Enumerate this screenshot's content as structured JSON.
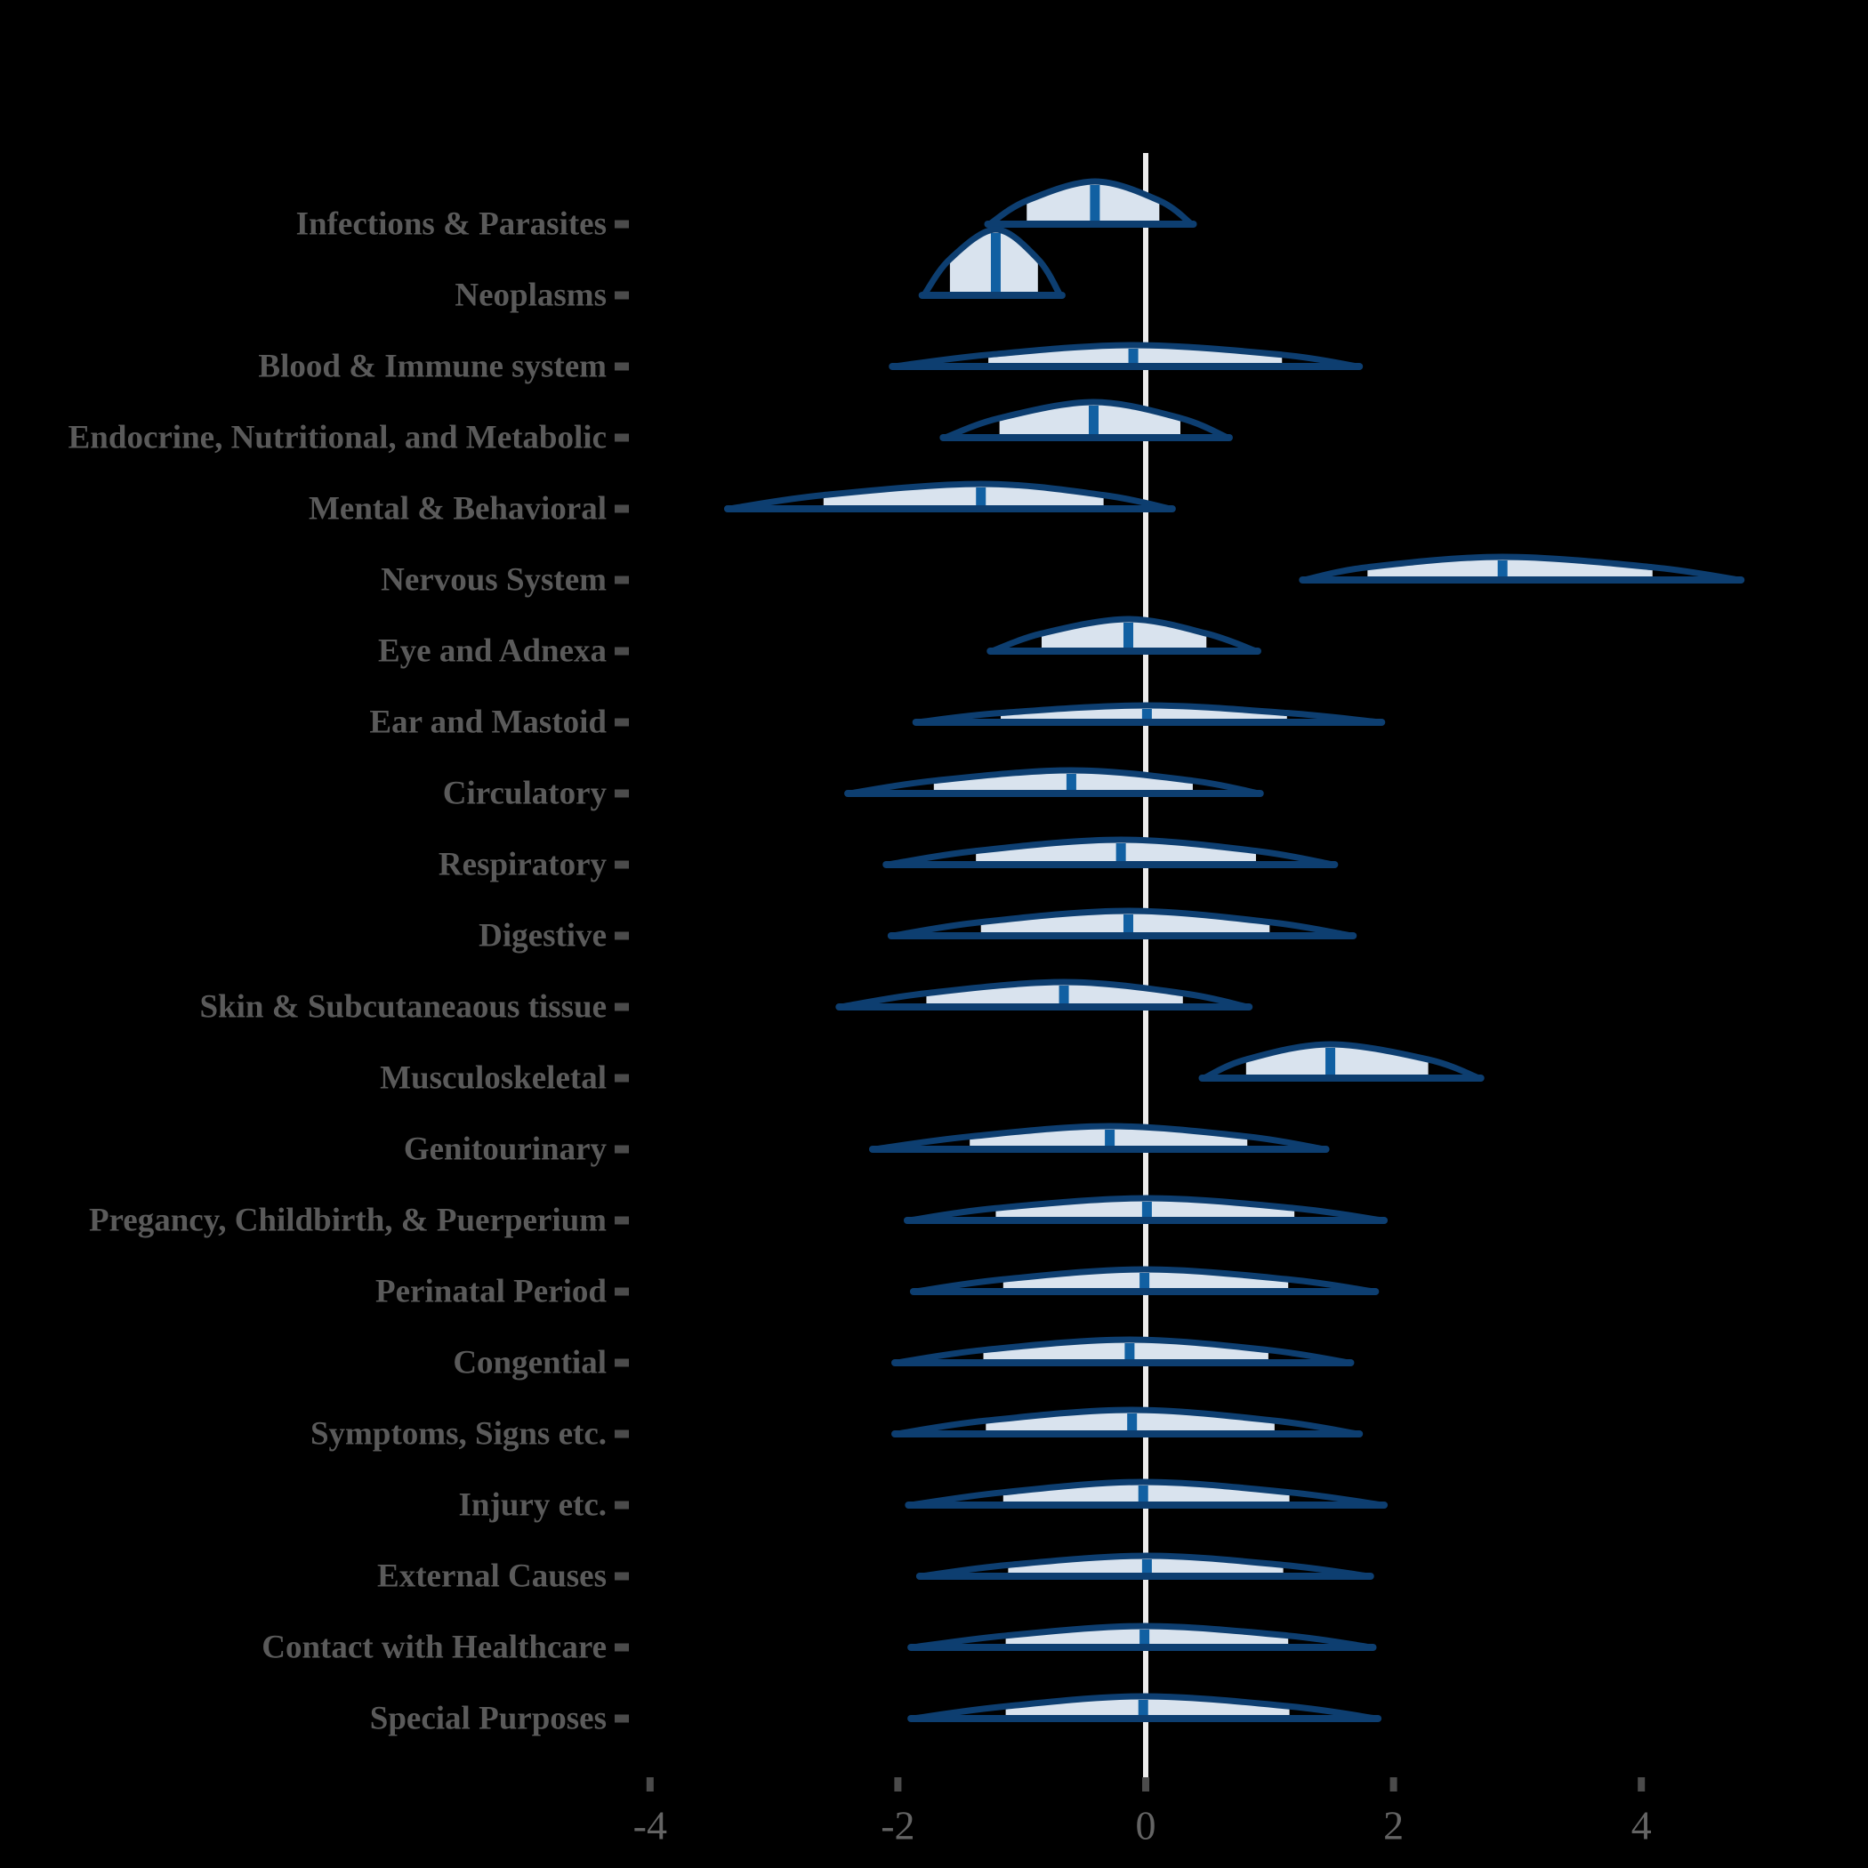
{
  "chart_data": {
    "type": "area",
    "subtype": "ridgeline-density-halfeye",
    "title": "",
    "xlabel": "",
    "ylabel": "",
    "grid": "off",
    "legend": "none",
    "zero_reference_line": true,
    "x_axis": {
      "range": [
        -4.9,
        5.8
      ],
      "ticks": [
        -4,
        -2,
        0,
        2,
        4
      ],
      "tick_labels": [
        "-4",
        "-2",
        "0",
        "2",
        "4"
      ]
    },
    "rows": [
      {
        "label": "Infections & Parasites",
        "min": -1.26,
        "q_lo": -0.96,
        "median": -0.41,
        "q_hi": 0.11,
        "max": 0.37,
        "height": 48
      },
      {
        "label": "Neoplasms",
        "min": -1.79,
        "q_lo": -1.58,
        "median": -1.21,
        "q_hi": -0.87,
        "max": -0.69,
        "height": 74
      },
      {
        "label": "Blood & Immune system",
        "min": -2.03,
        "q_lo": -1.27,
        "median": -0.1,
        "q_hi": 1.1,
        "max": 1.71,
        "height": 24
      },
      {
        "label": "Endocrine, Nutritional, and Metabolic",
        "min": -1.62,
        "q_lo": -1.18,
        "median": -0.42,
        "q_hi": 0.28,
        "max": 0.66,
        "height": 40
      },
      {
        "label": "Mental & Behavioral",
        "min": -3.36,
        "q_lo": -2.6,
        "median": -1.33,
        "q_hi": -0.34,
        "max": 0.2,
        "height": 28
      },
      {
        "label": "Nervous System",
        "min": 1.28,
        "q_lo": 1.79,
        "median": 2.88,
        "q_hi": 4.09,
        "max": 4.79,
        "height": 26
      },
      {
        "label": "Eye and Adnexa",
        "min": -1.24,
        "q_lo": -0.84,
        "median": -0.14,
        "q_hi": 0.49,
        "max": 0.89,
        "height": 36
      },
      {
        "label": "Ear and Mastoid",
        "min": -1.84,
        "q_lo": -1.17,
        "median": 0.01,
        "q_hi": 1.14,
        "max": 1.89,
        "height": 19
      },
      {
        "label": "Circulatory",
        "min": -2.39,
        "q_lo": -1.71,
        "median": -0.6,
        "q_hi": 0.38,
        "max": 0.91,
        "height": 26
      },
      {
        "label": "Respiratory",
        "min": -2.08,
        "q_lo": -1.37,
        "median": -0.2,
        "q_hi": 0.89,
        "max": 1.51,
        "height": 28
      },
      {
        "label": "Digestive",
        "min": -2.04,
        "q_lo": -1.33,
        "median": -0.14,
        "q_hi": 1.0,
        "max": 1.66,
        "height": 28
      },
      {
        "label": "Skin & Subcutaneaous tissue",
        "min": -2.46,
        "q_lo": -1.77,
        "median": -0.66,
        "q_hi": 0.3,
        "max": 0.82,
        "height": 28
      },
      {
        "label": "Musculoskeletal",
        "min": 0.47,
        "q_lo": 0.81,
        "median": 1.49,
        "q_hi": 2.28,
        "max": 2.69,
        "height": 38
      },
      {
        "label": "Genitourinary",
        "min": -2.19,
        "q_lo": -1.42,
        "median": -0.29,
        "q_hi": 0.82,
        "max": 1.44,
        "height": 26
      },
      {
        "label": "Pregancy, Childbirth, & Puerperium",
        "min": -1.91,
        "q_lo": -1.21,
        "median": 0.01,
        "q_hi": 1.2,
        "max": 1.91,
        "height": 25
      },
      {
        "label": "Perinatal Period",
        "min": -1.86,
        "q_lo": -1.15,
        "median": -0.01,
        "q_hi": 1.15,
        "max": 1.84,
        "height": 25
      },
      {
        "label": "Congential",
        "min": -2.01,
        "q_lo": -1.31,
        "median": -0.13,
        "q_hi": 0.99,
        "max": 1.64,
        "height": 26
      },
      {
        "label": "Symptoms, Signs etc.",
        "min": -2.01,
        "q_lo": -1.29,
        "median": -0.11,
        "q_hi": 1.04,
        "max": 1.71,
        "height": 27
      },
      {
        "label": "Injury etc.",
        "min": -1.9,
        "q_lo": -1.15,
        "median": -0.02,
        "q_hi": 1.16,
        "max": 1.91,
        "height": 26
      },
      {
        "label": "External Causes",
        "min": -1.81,
        "q_lo": -1.11,
        "median": 0.01,
        "q_hi": 1.11,
        "max": 1.8,
        "height": 23
      },
      {
        "label": "Contact with Healthcare",
        "min": -1.88,
        "q_lo": -1.13,
        "median": -0.01,
        "q_hi": 1.15,
        "max": 1.82,
        "height": 24
      },
      {
        "label": "Special Purposes",
        "min": -1.88,
        "q_lo": -1.13,
        "median": -0.02,
        "q_hi": 1.16,
        "max": 1.86,
        "height": 25
      }
    ],
    "colors": {
      "background": "#000000",
      "density_outline": "#0d3e70",
      "density_fill": "#d9e3ee",
      "median_bar": "#1160a2",
      "zero_line": "#ececec",
      "category_label": "#5a5a5a",
      "tick_mark": "#4b4b4b",
      "axis_number": "#646464"
    }
  }
}
